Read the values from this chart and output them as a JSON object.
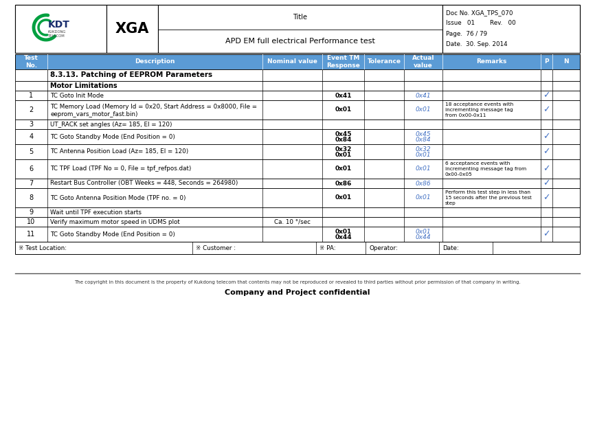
{
  "header_title_label": "Title",
  "header_title_value": "APD EM full electrical Performance test",
  "doc_no": "Doc No. XGA_TPS_070",
  "issue": "Issue   01        Rev.   00",
  "page": "Page.  76 / 79",
  "date": "Date.  30. Sep. 2014",
  "section_title": "8.3.13. Patching of EEPROM Parameters",
  "subsection": "Motor Limitations",
  "col_headers": [
    "Test\nNo.",
    "Description",
    "Nominal value",
    "Event TM\nResponse",
    "Tolerance",
    "Actual\nvalue",
    "Remarks",
    "P",
    "N"
  ],
  "rows": [
    {
      "no": "1",
      "desc": "TC Goto Init Mode",
      "nominal": "",
      "event_tm": "0x41",
      "actual": "0x41",
      "remarks": "",
      "p": true
    },
    {
      "no": "2",
      "desc": "TC Memory Load (Memory Id = 0x20, Start Address = 0x8000, File =\neeprom_vars_motor_fast.bin)",
      "nominal": "",
      "event_tm": "0x01",
      "actual": "0x01",
      "remarks": "18 acceptance events with\nincrementing message tag\nfrom 0x00-0x11",
      "p": true
    },
    {
      "no": "3",
      "desc": "UT_RACK set angles (Az= 185, El = 120)",
      "nominal": "",
      "event_tm": "",
      "actual": "",
      "remarks": "",
      "p": false
    },
    {
      "no": "4",
      "desc": "TC Goto Standby Mode (End Position = 0)",
      "nominal": "",
      "event_tm": "0x45\n0x84",
      "actual": "0x45\n0x84",
      "remarks": "",
      "p": true
    },
    {
      "no": "5",
      "desc": "TC Antenna Position Load (Az= 185, El = 120)",
      "nominal": "",
      "event_tm": "0x32\n0x01",
      "actual": "0x32\n0x01",
      "remarks": "",
      "p": true
    },
    {
      "no": "6",
      "desc": "TC TPF Load (TPF No = 0, File = tpf_refpos.dat)",
      "nominal": "",
      "event_tm": "0x01",
      "actual": "0x01",
      "remarks": "6 acceptance events with\nincrementing message tag from\n0x00-0x05",
      "p": true
    },
    {
      "no": "7",
      "desc": "Restart Bus Controller (OBT Weeks = 448, Seconds = 264980)",
      "nominal": "",
      "event_tm": "0x86",
      "actual": "0x86",
      "remarks": "",
      "p": true
    },
    {
      "no": "8",
      "desc": "TC Goto Antenna Position Mode (TPF no. = 0)",
      "nominal": "",
      "event_tm": "0x01",
      "actual": "0x01",
      "remarks": "Perform this test step in less than\n15 seconds after the previous test\nstep",
      "p": true
    },
    {
      "no": "9",
      "desc": "Wait until TPF execution starts",
      "nominal": "",
      "event_tm": "",
      "actual": "",
      "remarks": "",
      "p": false
    },
    {
      "no": "10",
      "desc": "Verify maximum motor speed in UDMS plot",
      "nominal": "Ca. 10 °/sec",
      "event_tm": "",
      "actual": "",
      "remarks": "",
      "p": false
    },
    {
      "no": "11",
      "desc": "TC Goto Standby Mode (End Position = 0)",
      "nominal": "",
      "event_tm": "0x01\n0x44",
      "actual": "0x01\n0x44",
      "remarks": "",
      "p": true
    }
  ],
  "footer_test_location": "※ Test Location:",
  "footer_customer": "※ Customer :",
  "footer_pa": "※ PA:",
  "footer_operator": "Operator:",
  "footer_date": "Date:",
  "copyright": "The copyright in this document is the property of Kukdong telecom that contents may not be reproduced or revealed to third parties without prior permission of that company in writing.",
  "confidential": "Company and Project confidential",
  "header_bg": "#5b9bd5",
  "actual_color": "#4472c4",
  "check_color": "#4472c4",
  "border_color": "#000000"
}
